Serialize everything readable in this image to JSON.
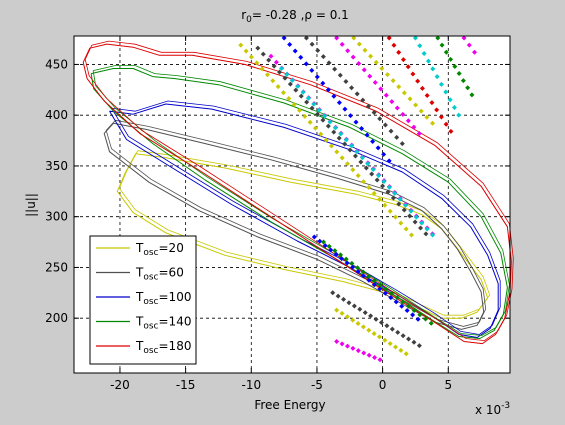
{
  "chart_data": {
    "type": "line",
    "title_base": "r",
    "title_sub": "0",
    "title_rest": "= -0.28 ,ρ = 0.1",
    "xlabel": "Free Energy",
    "ylabel": "||u||",
    "x_multiplier_base": "x 10",
    "x_multiplier_exp": "-3",
    "xlim": [
      -0.0235,
      0.0097
    ],
    "ylim": [
      146,
      478
    ],
    "x_ticks": [
      -0.02,
      -0.015,
      -0.01,
      -0.005,
      0,
      0.005
    ],
    "x_tick_labels": [
      "-20",
      "-15",
      "-10",
      "-5",
      "0",
      "5"
    ],
    "y_ticks": [
      200,
      250,
      300,
      350,
      400,
      450
    ],
    "y_tick_labels": [
      "200",
      "250",
      "300",
      "350",
      "400",
      "450"
    ],
    "grid": true,
    "legend_position": "bottom-left",
    "series": [
      {
        "name_base": "T",
        "name_sub": "osc",
        "name_value": "=20",
        "color": "#c8c800",
        "points": [
          [
            -0.0188,
            362
          ],
          [
            -0.0165,
            358
          ],
          [
            -0.012,
            348
          ],
          [
            -0.007,
            334
          ],
          [
            -0.002,
            322
          ],
          [
            0.001,
            312
          ],
          [
            0.003,
            302
          ],
          [
            0.0045,
            288
          ],
          [
            0.0055,
            272
          ],
          [
            0.0065,
            255
          ],
          [
            0.0075,
            238
          ],
          [
            0.008,
            220
          ],
          [
            0.0072,
            206
          ],
          [
            0.006,
            200
          ],
          [
            0.0045,
            200
          ],
          [
            0.0025,
            212
          ],
          [
            0.0005,
            224
          ],
          [
            -0.003,
            236
          ],
          [
            -0.0075,
            248
          ],
          [
            -0.012,
            262
          ],
          [
            -0.0165,
            284
          ],
          [
            -0.019,
            304
          ],
          [
            -0.0202,
            325
          ],
          [
            -0.0196,
            343
          ],
          [
            -0.0188,
            362
          ]
        ]
      },
      {
        "name_base": "T",
        "name_sub": "osc",
        "name_value": "=60",
        "color": "#505050",
        "points": [
          [
            -0.0205,
            392
          ],
          [
            -0.018,
            386
          ],
          [
            -0.0135,
            372
          ],
          [
            -0.0085,
            356
          ],
          [
            -0.0035,
            338
          ],
          [
            0.0005,
            322
          ],
          [
            0.003,
            306
          ],
          [
            0.0045,
            288
          ],
          [
            0.0057,
            268
          ],
          [
            0.0067,
            246
          ],
          [
            0.0075,
            226
          ],
          [
            0.0077,
            206
          ],
          [
            0.0072,
            193
          ],
          [
            0.006,
            189
          ],
          [
            0.004,
            196
          ],
          [
            0.0015,
            214
          ],
          [
            -0.0015,
            236
          ],
          [
            -0.005,
            258
          ],
          [
            -0.0095,
            280
          ],
          [
            -0.014,
            306
          ],
          [
            -0.0178,
            334
          ],
          [
            -0.0208,
            364
          ],
          [
            -0.0212,
            382
          ],
          [
            -0.0205,
            392
          ]
        ]
      },
      {
        "name_base": "T",
        "name_sub": "osc",
        "name_value": "=100",
        "color": "#0000cc",
        "points": [
          [
            -0.0208,
            404
          ],
          [
            -0.019,
            401
          ],
          [
            -0.0165,
            411
          ],
          [
            -0.013,
            406
          ],
          [
            -0.0075,
            388
          ],
          [
            -0.0025,
            366
          ],
          [
            0.0015,
            344
          ],
          [
            0.0045,
            318
          ],
          [
            0.0067,
            290
          ],
          [
            0.008,
            262
          ],
          [
            0.0088,
            234
          ],
          [
            0.0088,
            208
          ],
          [
            0.0082,
            190
          ],
          [
            0.0072,
            181
          ],
          [
            0.0058,
            184
          ],
          [
            0.0038,
            202
          ],
          [
            0.001,
            224
          ],
          [
            -0.0025,
            250
          ],
          [
            -0.0065,
            276
          ],
          [
            -0.0115,
            312
          ],
          [
            -0.016,
            348
          ],
          [
            -0.0195,
            376
          ],
          [
            -0.0208,
            404
          ]
        ]
      },
      {
        "name_base": "T",
        "name_sub": "osc",
        "name_value": "=140",
        "color": "#008800",
        "points": [
          [
            -0.0222,
            441
          ],
          [
            -0.0205,
            446
          ],
          [
            -0.019,
            446
          ],
          [
            -0.0175,
            438
          ],
          [
            -0.0158,
            436
          ],
          [
            -0.0125,
            430
          ],
          [
            -0.0075,
            412
          ],
          [
            -0.0025,
            388
          ],
          [
            0.0015,
            362
          ],
          [
            0.005,
            334
          ],
          [
            0.0075,
            300
          ],
          [
            0.009,
            264
          ],
          [
            0.0095,
            230
          ],
          [
            0.0092,
            204
          ],
          [
            0.0085,
            188
          ],
          [
            0.0074,
            180
          ],
          [
            0.0058,
            182
          ],
          [
            0.0038,
            198
          ],
          [
            0.0005,
            226
          ],
          [
            -0.0035,
            258
          ],
          [
            -0.0085,
            295
          ],
          [
            -0.0135,
            336
          ],
          [
            -0.0175,
            372
          ],
          [
            -0.0205,
            404
          ],
          [
            -0.022,
            426
          ],
          [
            -0.0222,
            441
          ]
        ]
      },
      {
        "name_base": "T",
        "name_sub": "osc",
        "name_value": "=180",
        "color": "#dd0000",
        "points": [
          [
            -0.0228,
            452
          ],
          [
            -0.0223,
            466
          ],
          [
            -0.021,
            470
          ],
          [
            -0.019,
            467
          ],
          [
            -0.017,
            459
          ],
          [
            -0.0145,
            459
          ],
          [
            -0.0105,
            450
          ],
          [
            -0.0055,
            430
          ],
          [
            -0.0005,
            404
          ],
          [
            0.004,
            370
          ],
          [
            0.0075,
            330
          ],
          [
            0.0095,
            290
          ],
          [
            0.0098,
            256
          ],
          [
            0.0097,
            226
          ],
          [
            0.0093,
            200
          ],
          [
            0.0086,
            184
          ],
          [
            0.0076,
            175
          ],
          [
            0.0062,
            177
          ],
          [
            0.0042,
            194
          ],
          [
            0.0005,
            224
          ],
          [
            -0.004,
            262
          ],
          [
            -0.009,
            304
          ],
          [
            -0.014,
            346
          ],
          [
            -0.0185,
            382
          ],
          [
            -0.0212,
            414
          ],
          [
            -0.0225,
            436
          ],
          [
            -0.0228,
            452
          ]
        ]
      }
    ],
    "marker_series": [
      {
        "color": "#c8c800",
        "start": [
          -0.0108,
          469
        ],
        "end": [
          0.0022,
          282
        ],
        "n": 33
      },
      {
        "color": "#404040",
        "start": [
          -0.0095,
          466
        ],
        "end": [
          0.0033,
          283
        ],
        "n": 32
      },
      {
        "color": "#ee00ee",
        "start": [
          -0.0085,
          458
        ],
        "end": [
          0.0038,
          283
        ],
        "n": 31
      },
      {
        "color": "#00cccc",
        "start": [
          -0.0077,
          446
        ],
        "end": [
          0.0038,
          282
        ],
        "n": 29
      },
      {
        "color": "#0000ff",
        "start": [
          -0.0052,
          280
        ],
        "end": [
          0.0027,
          199
        ],
        "n": 20
      },
      {
        "color": "#008800",
        "start": [
          -0.0045,
          275
        ],
        "end": [
          0.0037,
          195
        ],
        "n": 20
      },
      {
        "color": "#404040",
        "start": [
          -0.0038,
          225
        ],
        "end": [
          0.0028,
          173
        ],
        "n": 17
      },
      {
        "color": "#c8c800",
        "start": [
          -0.0035,
          208
        ],
        "end": [
          0.0018,
          165
        ],
        "n": 14
      },
      {
        "color": "#ee00ee",
        "start": [
          -0.0035,
          177
        ],
        "end": [
          -0.0002,
          159
        ],
        "n": 9
      },
      {
        "color": "#0000ff",
        "start": [
          -0.0075,
          476
        ],
        "end": [
          0.0005,
          355
        ],
        "n": 20
      },
      {
        "color": "#404040",
        "start": [
          -0.0058,
          476
        ],
        "end": [
          0.0015,
          372
        ],
        "n": 18
      },
      {
        "color": "#ee00ee",
        "start": [
          -0.0035,
          476
        ],
        "end": [
          0.0028,
          382
        ],
        "n": 16
      },
      {
        "color": "#c8c800",
        "start": [
          -0.0022,
          476
        ],
        "end": [
          0.0038,
          392
        ],
        "n": 15
      },
      {
        "color": "#dd0000",
        "start": [
          0.0005,
          476
        ],
        "end": [
          0.0052,
          384
        ],
        "n": 14
      },
      {
        "color": "#00cccc",
        "start": [
          0.0025,
          476
        ],
        "end": [
          0.0058,
          400
        ],
        "n": 11
      },
      {
        "color": "#008800",
        "start": [
          0.0042,
          476
        ],
        "end": [
          0.0068,
          420
        ],
        "n": 9
      },
      {
        "color": "#ee00ee",
        "start": [
          0.0062,
          476
        ],
        "end": [
          0.007,
          462
        ],
        "n": 3
      }
    ]
  }
}
